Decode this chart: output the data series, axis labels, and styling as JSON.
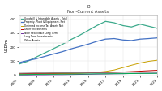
{
  "title": "Non-Current Assets",
  "subtitle": "B",
  "ylabel": "USD/m",
  "years": [
    2007,
    2008,
    2009,
    2010,
    2011,
    2012,
    2013,
    2014,
    2015,
    2016,
    2017,
    2018,
    2019,
    2020,
    2021,
    2022,
    2023
  ],
  "series": [
    {
      "label": "Goodwill & Intangible Assets - Total",
      "color": "#3daa8c",
      "lw": 0.9,
      "values": [
        80,
        100,
        130,
        160,
        190,
        220,
        255,
        285,
        320,
        355,
        385,
        375,
        355,
        345,
        365,
        350,
        335
      ]
    },
    {
      "label": "Property, Plant & Equipment, Net",
      "color": "#4472c4",
      "lw": 0.9,
      "values": [
        90,
        105,
        118,
        135,
        152,
        168,
        188,
        205,
        222,
        242,
        258,
        262,
        252,
        248,
        258,
        262,
        267
      ]
    },
    {
      "label": "Deferred Income Tax Assets Net",
      "color": "#c8a000",
      "lw": 0.7,
      "values": [
        8,
        9,
        10,
        11,
        12,
        13,
        14,
        15,
        18,
        22,
        28,
        38,
        55,
        72,
        88,
        100,
        108
      ]
    },
    {
      "label": "Other Investments",
      "color": "#c00000",
      "lw": 0.7,
      "values": [
        12,
        13,
        14,
        14,
        15,
        16,
        16,
        17,
        18,
        19,
        20,
        22,
        24,
        27,
        30,
        33,
        36
      ]
    },
    {
      "label": "Note Receivable Long Term",
      "color": "#7030a0",
      "lw": 0.7,
      "values": [
        3,
        3,
        4,
        4,
        5,
        5,
        6,
        7,
        8,
        9,
        10,
        11,
        12,
        13,
        14,
        15,
        16
      ]
    },
    {
      "label": "Long-Term Investments",
      "color": "#00b050",
      "lw": 0.7,
      "values": [
        5,
        6,
        7,
        8,
        8,
        9,
        9,
        10,
        10,
        11,
        11,
        12,
        12,
        13,
        14,
        14,
        15
      ]
    },
    {
      "label": "Other Assets",
      "color": "#808080",
      "lw": 0.7,
      "values": [
        15,
        16,
        17,
        17,
        18,
        18,
        19,
        19,
        20,
        20,
        21,
        21,
        22,
        22,
        23,
        23,
        24
      ]
    }
  ],
  "ylim": [
    0,
    430
  ],
  "yticks": [
    0,
    100,
    200,
    300,
    400
  ],
  "xtick_years": [
    2007,
    2009,
    2011,
    2013,
    2015,
    2017,
    2019,
    2021,
    2023
  ],
  "bg_color": "#ffffff",
  "grid_color": "#e0e0e0"
}
